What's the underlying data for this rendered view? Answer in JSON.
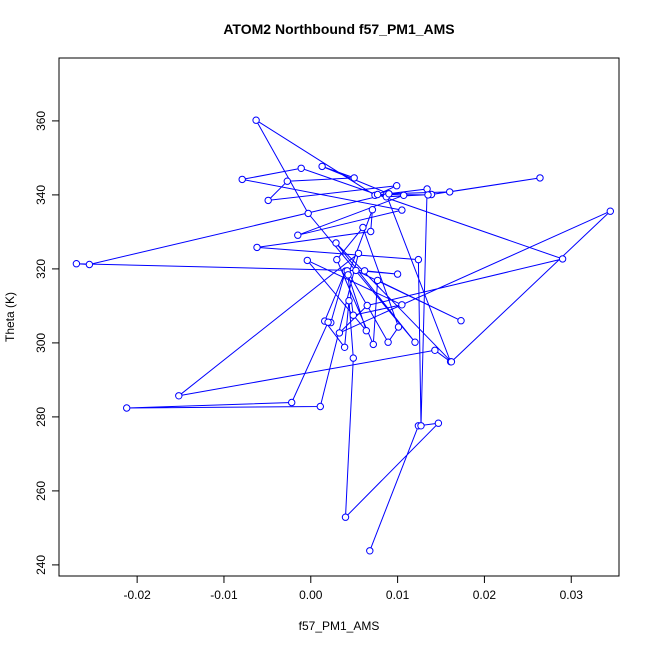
{
  "chart_data": {
    "type": "line",
    "title": "ATOM2 Northbound f57_PM1_AMS",
    "xlabel": "f57_PM1_AMS",
    "ylabel": "Theta (K)",
    "xlim": [
      -0.029,
      0.0355
    ],
    "ylim": [
      237,
      377
    ],
    "xticks": [
      -0.02,
      -0.01,
      0.0,
      0.01,
      0.02,
      0.03
    ],
    "xtick_labels": [
      "-0.02",
      "-0.01",
      "0.00",
      "0.01",
      "0.02",
      "0.03"
    ],
    "yticks": [
      240,
      260,
      280,
      300,
      320,
      340,
      360
    ],
    "ytick_labels": [
      "240",
      "260",
      "280",
      "300",
      "320",
      "340",
      "360"
    ],
    "grid": false,
    "series_color": "#0000ff",
    "marker": "open-circle",
    "series": [
      {
        "x": [
          0.0068,
          0.0124,
          0.0147,
          0.004,
          0.0049,
          0.0044,
          0.0039,
          0.0016,
          0.004,
          0.0023,
          0.002,
          -0.0022,
          -0.0212,
          0.0011,
          0.0055,
          -0.0152,
          0.0143,
          0.0161,
          0.0087,
          -0.0255,
          -0.027,
          0.0062,
          0.01,
          0.0052,
          0.0173,
          0.0077,
          0.0072,
          0.003,
          0.006,
          0.0101,
          0.0089,
          0.0042,
          0.0049,
          0.0105,
          -0.0004,
          0.0064,
          0.0043,
          0.0071,
          0.0069,
          -0.0062,
          0.0124,
          0.0127,
          0.0134,
          0.0074,
          -0.0063,
          -0.0003,
          0.012,
          0.0029,
          0.0162,
          0.0345,
          0.0033,
          0.0065,
          0.029,
          -0.0011,
          -0.0079,
          0.0105,
          -0.0015,
          0.0107,
          0.009,
          0.0087,
          0.0139,
          0.0264,
          0.016,
          0.009,
          0.0013,
          0.005,
          -0.0027,
          -0.0049,
          0.0099,
          0.0077,
          0.0135
        ]
      }
    ]
  }
}
